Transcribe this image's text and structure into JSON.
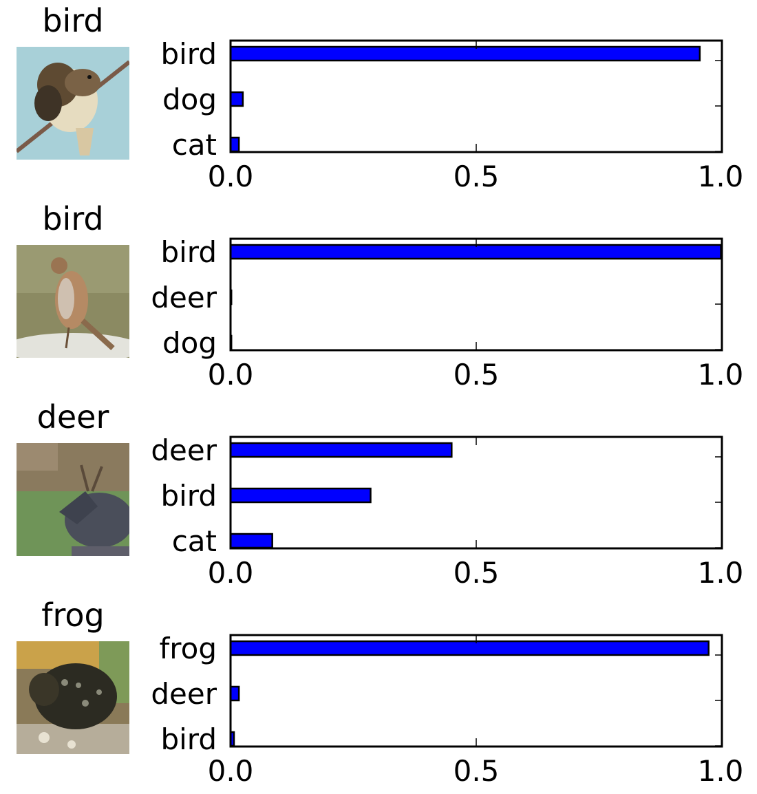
{
  "colors": {
    "bar": "#0000ff",
    "bar_edge": "#000000",
    "axes": "#000000"
  },
  "chart_data": [
    {
      "type": "bar",
      "orientation": "horizontal",
      "title": "bird",
      "image": "bird perched on a branch",
      "categories": [
        "bird",
        "dog",
        "cat"
      ],
      "values": [
        0.955,
        0.025,
        0.017
      ],
      "xlim": [
        0.0,
        1.0
      ],
      "xticks": [
        "0.0",
        "0.5",
        "1.0"
      ]
    },
    {
      "type": "bar",
      "orientation": "horizontal",
      "title": "bird",
      "image": "bird standing on the ground",
      "categories": [
        "bird",
        "deer",
        "dog"
      ],
      "values": [
        0.998,
        0.001,
        0.001
      ],
      "xlim": [
        0.0,
        1.0
      ],
      "xticks": [
        "0.0",
        "0.5",
        "1.0"
      ]
    },
    {
      "type": "bar",
      "orientation": "horizontal",
      "title": "deer",
      "image": "deer in a grassy field",
      "categories": [
        "deer",
        "bird",
        "cat"
      ],
      "values": [
        0.45,
        0.285,
        0.085
      ],
      "xlim": [
        0.0,
        1.0
      ],
      "xticks": [
        "0.0",
        "0.5",
        "1.0"
      ]
    },
    {
      "type": "bar",
      "orientation": "horizontal",
      "title": "frog",
      "image": "dark spotted frog",
      "categories": [
        "frog",
        "deer",
        "bird"
      ],
      "values": [
        0.973,
        0.017,
        0.007
      ],
      "xlim": [
        0.0,
        1.0
      ],
      "xticks": [
        "0.0",
        "0.5",
        "1.0"
      ]
    }
  ]
}
